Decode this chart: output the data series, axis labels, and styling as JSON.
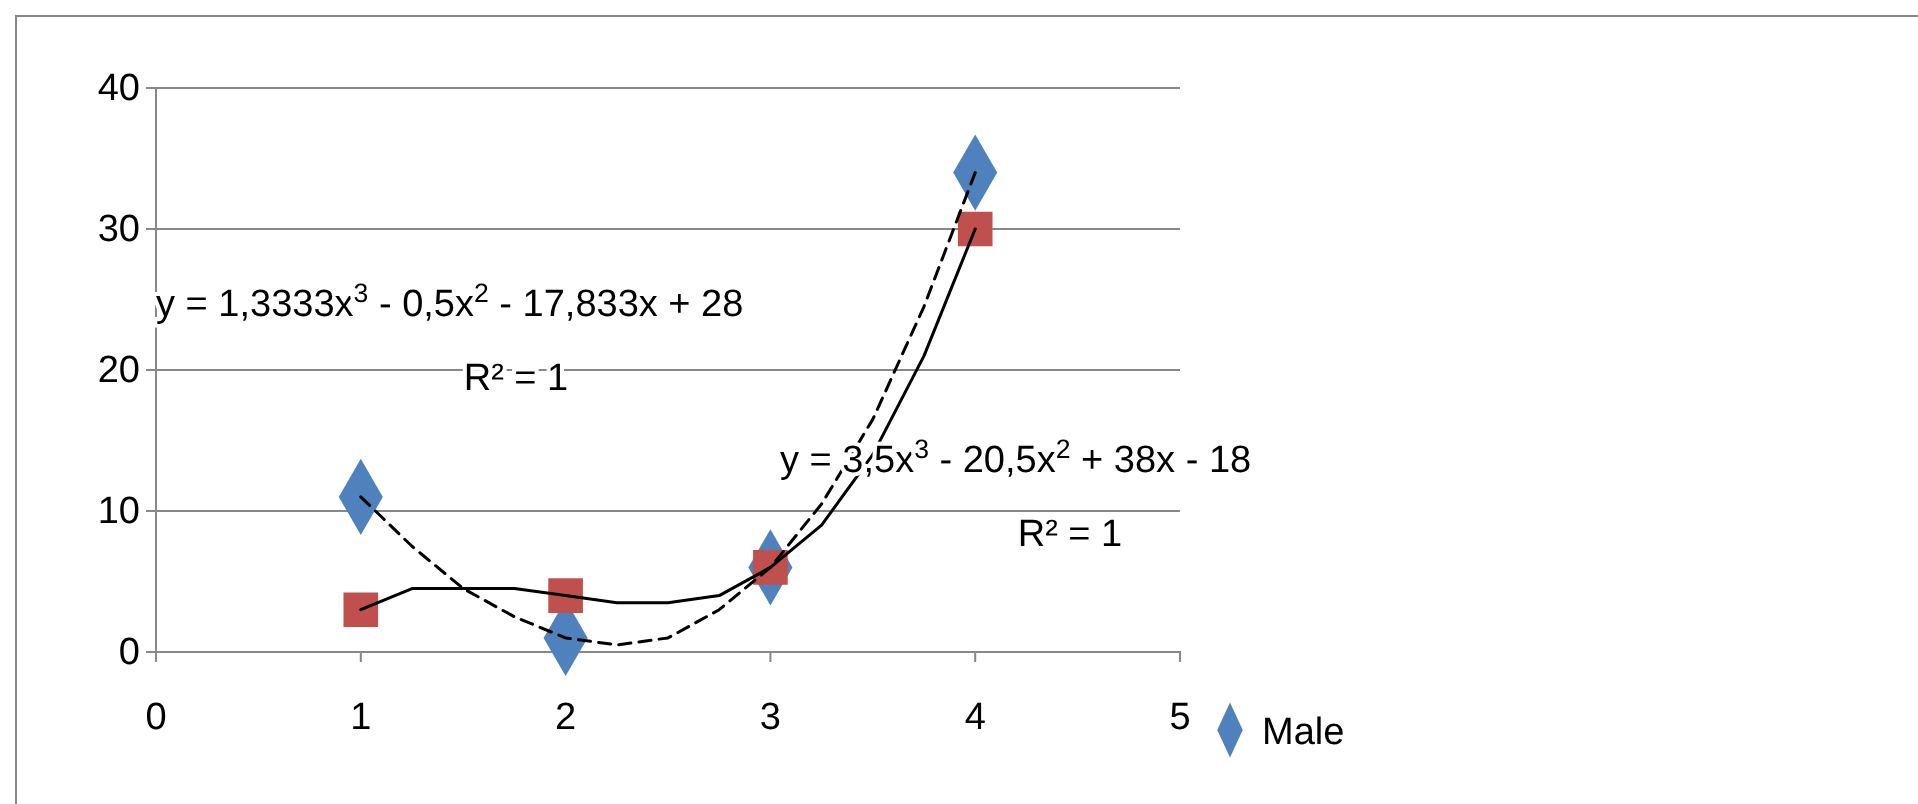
{
  "chart_data": {
    "type": "scatter",
    "x": [
      1,
      2,
      3,
      4
    ],
    "xlim": [
      0,
      5
    ],
    "xticks": [
      0,
      1,
      2,
      3,
      4,
      5
    ],
    "ylim": [
      0,
      40
    ],
    "yticks": [
      0,
      10,
      20,
      30,
      40
    ],
    "grid": "y",
    "legend": "bottom",
    "series": [
      {
        "name": "Male",
        "color": "#4f81bd",
        "marker": "diamond",
        "values": [
          11,
          1,
          6,
          34
        ]
      },
      {
        "color": "#c0504d",
        "marker": "square",
        "values": [
          3,
          4,
          6,
          30
        ]
      },
      {
        "type": "line",
        "color": "#000000",
        "line_style": "dashed",
        "marker": "none",
        "x": [
          1,
          1.25,
          1.5,
          1.75,
          2,
          2.25,
          2.5,
          2.75,
          3,
          3.25,
          3.5,
          3.75,
          4
        ],
        "values": [
          11,
          7.5,
          4.5,
          2.5,
          1,
          0.5,
          1,
          3,
          6,
          10.5,
          16.5,
          24.5,
          34
        ]
      },
      {
        "type": "line",
        "color": "#000000",
        "line_style": "solid",
        "marker": "none",
        "x": [
          1,
          1.25,
          1.5,
          1.75,
          2,
          2.25,
          2.5,
          2.75,
          3,
          3.25,
          3.5,
          3.75,
          4
        ],
        "values": [
          3,
          4.5,
          4.5,
          4.5,
          4,
          3.5,
          3.5,
          4,
          6,
          9,
          14,
          21,
          30
        ]
      }
    ],
    "annotations": [
      "y = 1,3333x$^{3}$ - 0,5x$^{2}$ - 17,833x + 28",
      "R² = 1",
      "y = 3,5x$^{3}$ - 20,5x$^{2}$ + 38x - 18",
      "R² = 1"
    ]
  }
}
